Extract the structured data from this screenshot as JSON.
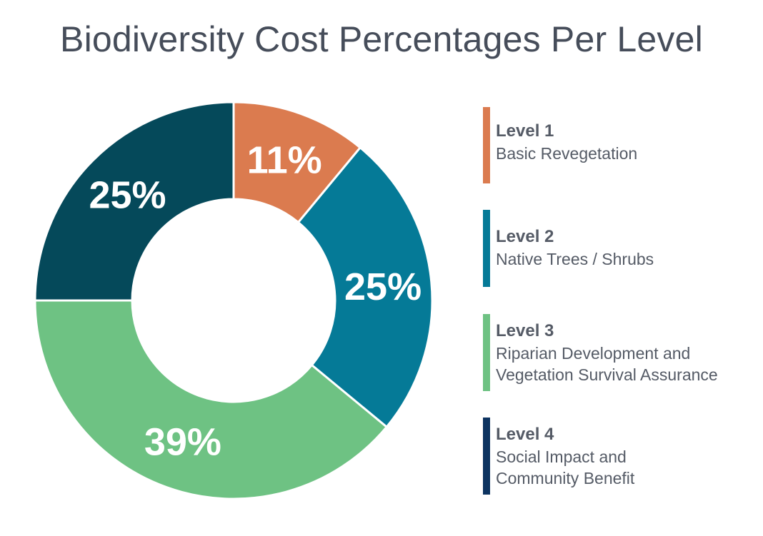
{
  "title": "Biodiversity Cost Percentages Per Level",
  "chart_data": {
    "type": "pie",
    "title": "Biodiversity Cost Percentages Per Level",
    "categories": [
      "Level 1",
      "Level 2",
      "Level 3",
      "Level 4"
    ],
    "values": [
      11,
      25,
      39,
      25
    ],
    "value_labels": [
      "11%",
      "25%",
      "39%",
      "25%"
    ],
    "colors": [
      "#db7b4f",
      "#057a97",
      "#6ec283",
      "#05495a"
    ],
    "donut": true,
    "legend_position": "right"
  },
  "legend": [
    {
      "level": "Level 1",
      "desc": [
        "Basic Revegetation"
      ],
      "color": "#db7b4f"
    },
    {
      "level": "Level 2",
      "desc": [
        "Native Trees / Shrubs"
      ],
      "color": "#057a97"
    },
    {
      "level": "Level 3",
      "desc": [
        "Riparian Development and",
        "Vegetation Survival Assurance"
      ],
      "color": "#6ec283"
    },
    {
      "level": "Level 4",
      "desc": [
        "Social Impact and",
        "Community Benefit"
      ],
      "color": "#0d3461"
    }
  ]
}
